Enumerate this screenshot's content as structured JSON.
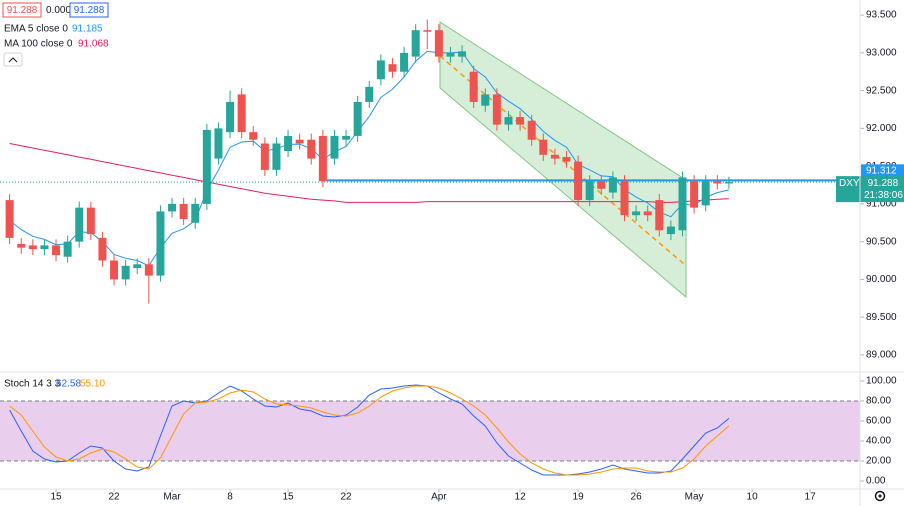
{
  "chart_data": [
    {
      "type": "candlestick",
      "symbol": "DXY",
      "time": "21:38:06",
      "header": [
        "91.288",
        "0.000",
        "91.288"
      ],
      "xlim": [
        -0.83,
        73.3
      ],
      "xticks": [
        {
          "value": 4,
          "label": "15"
        },
        {
          "value": 9,
          "label": "22"
        },
        {
          "value": 14,
          "label": "Mar"
        },
        {
          "value": 19,
          "label": "8"
        },
        {
          "value": 24,
          "label": "15"
        },
        {
          "value": 29,
          "label": "22"
        },
        {
          "value": 37,
          "label": "Apr"
        },
        {
          "value": 44,
          "label": "12"
        },
        {
          "value": 49,
          "label": "19"
        },
        {
          "value": 54,
          "label": "26"
        },
        {
          "value": 59,
          "label": "May"
        },
        {
          "value": 64,
          "label": "10"
        },
        {
          "value": 69,
          "label": "17"
        }
      ],
      "ylim": [
        88.8,
        93.7
      ],
      "yticks": [
        {
          "value": 93.5,
          "label": "93.500"
        },
        {
          "value": 93,
          "label": "93.000"
        },
        {
          "value": 92.5,
          "label": "92.500"
        },
        {
          "value": 92,
          "label": "92.000"
        },
        {
          "value": 91.5,
          "label": "91.500"
        },
        {
          "value": 91,
          "label": "91.000"
        },
        {
          "value": 90.5,
          "label": "90.500"
        },
        {
          "value": 90,
          "label": "90.000"
        },
        {
          "value": 89.5,
          "label": "89.500"
        },
        {
          "value": 89,
          "label": "89.000"
        }
      ],
      "up_color": "#26a69a",
      "down_color": "#ef5350",
      "level": 91.312,
      "last": 91.288,
      "open": [
        91.05,
        90.47,
        90.45,
        90.4,
        90.45,
        90.3,
        90.5,
        90.95,
        90.55,
        90.25,
        90.0,
        90.15,
        90.2,
        90.05,
        90.9,
        91.0,
        90.75,
        91.0,
        91.6,
        91.95,
        92.45,
        91.95,
        91.8,
        91.45,
        91.7,
        91.85,
        91.85,
        91.9,
        91.6,
        91.85,
        91.9,
        92.35,
        92.65,
        92.85,
        92.75,
        92.95,
        93.3,
        93.3,
        92.95,
        92.95,
        92.75,
        92.3,
        92.45,
        92.05,
        92.15,
        92.1,
        91.85,
        91.65,
        91.62,
        91.56,
        91.05,
        91.3,
        91.15,
        91.3,
        90.85,
        90.9,
        91.05,
        90.6,
        90.65,
        91.3,
        90.98,
        91.3,
        91.27
      ],
      "high": [
        91.13,
        90.55,
        90.53,
        90.53,
        90.53,
        90.58,
        91.03,
        91.03,
        90.63,
        90.33,
        90.26,
        90.28,
        90.28,
        90.98,
        91.08,
        91.08,
        91.08,
        92.06,
        92.08,
        92.5,
        92.53,
        92.03,
        91.88,
        91.88,
        91.98,
        91.93,
        91.93,
        91.98,
        91.98,
        91.98,
        92.43,
        92.63,
        92.98,
        92.93,
        93.08,
        93.38,
        93.44,
        93.38,
        93.08,
        93.1,
        92.83,
        92.53,
        92.53,
        92.23,
        92.23,
        92.18,
        91.93,
        91.73,
        91.7,
        91.64,
        91.38,
        91.38,
        91.43,
        91.38,
        90.98,
        90.98,
        91.13,
        90.78,
        91.43,
        91.38,
        91.38,
        91.38,
        91.36
      ],
      "low": [
        90.47,
        90.34,
        90.32,
        90.32,
        90.24,
        90.22,
        90.42,
        90.52,
        90.17,
        89.92,
        89.92,
        90.07,
        89.68,
        89.97,
        90.82,
        90.72,
        90.67,
        90.92,
        91.52,
        91.87,
        91.87,
        91.77,
        91.37,
        91.37,
        91.62,
        91.72,
        91.52,
        91.22,
        91.52,
        91.77,
        91.82,
        92.27,
        92.57,
        92.67,
        92.67,
        92.87,
        93.05,
        92.87,
        92.87,
        92.87,
        92.27,
        92.22,
        91.97,
        91.97,
        91.97,
        91.77,
        91.57,
        91.52,
        91.48,
        90.97,
        90.97,
        91.12,
        91.07,
        90.77,
        90.77,
        90.77,
        90.57,
        90.52,
        90.57,
        90.87,
        90.9,
        91.19,
        91.2
      ],
      "close": [
        90.55,
        90.42,
        90.4,
        90.45,
        90.32,
        90.5,
        90.95,
        90.6,
        90.25,
        90.0,
        90.18,
        90.2,
        90.05,
        90.9,
        91.0,
        90.8,
        91.0,
        91.98,
        92.0,
        92.35,
        91.95,
        91.85,
        91.45,
        91.8,
        91.9,
        91.8,
        91.6,
        91.3,
        91.9,
        91.9,
        92.35,
        92.55,
        92.9,
        92.75,
        93.0,
        93.3,
        93.28,
        92.95,
        93.0,
        93.02,
        92.35,
        92.45,
        92.05,
        92.15,
        92.05,
        91.85,
        91.65,
        91.6,
        91.56,
        91.05,
        91.3,
        91.2,
        91.35,
        90.85,
        90.9,
        90.85,
        90.65,
        90.7,
        91.35,
        90.95,
        91.3,
        91.27,
        91.288
      ],
      "series": [
        {
          "name": "EMA 5 close 0",
          "color": "#2196f3",
          "values": [
            90.78,
            90.66,
            90.57,
            90.53,
            90.46,
            90.47,
            90.63,
            90.62,
            90.5,
            90.33,
            90.28,
            90.25,
            90.18,
            90.42,
            90.61,
            90.67,
            90.78,
            91.18,
            91.45,
            91.75,
            91.82,
            91.83,
            91.7,
            91.73,
            91.79,
            91.79,
            91.73,
            91.59,
            91.69,
            91.76,
            91.96,
            92.16,
            92.41,
            92.52,
            92.68,
            92.89,
            93.02,
            93.0,
            93.0,
            93.01,
            92.79,
            92.68,
            92.47,
            92.36,
            92.26,
            92.12,
            91.96,
            91.84,
            91.75,
            91.52,
            91.45,
            91.37,
            91.36,
            91.19,
            91.09,
            91.01,
            90.89,
            90.83,
            91.0,
            90.98,
            91.09,
            91.15,
            91.185
          ]
        },
        {
          "name": "MA 100 close 0",
          "color": "#e91e63",
          "values": [
            91.8,
            91.77,
            91.74,
            91.71,
            91.68,
            91.65,
            91.62,
            91.59,
            91.56,
            91.53,
            91.5,
            91.47,
            91.44,
            91.41,
            91.38,
            91.35,
            91.32,
            91.29,
            91.26,
            91.23,
            91.2,
            91.17,
            91.14,
            91.12,
            91.1,
            91.08,
            91.06,
            91.05,
            91.04,
            91.02,
            91.02,
            91.02,
            91.02,
            91.02,
            91.02,
            91.02,
            91.03,
            91.03,
            91.03,
            91.03,
            91.03,
            91.03,
            91.03,
            91.03,
            91.03,
            91.03,
            91.03,
            91.03,
            91.03,
            91.03,
            91.03,
            91.03,
            91.03,
            91.03,
            91.03,
            91.03,
            91.02,
            91.02,
            91.03,
            91.04,
            91.05,
            91.06,
            91.068
          ]
        }
      ]
    },
    {
      "type": "line",
      "title": "Stoch 14 3 3",
      "ylim": [
        -7,
        106
      ],
      "yticks": [
        {
          "value": 100,
          "label": "100.00"
        },
        {
          "value": 80,
          "label": "80.00"
        },
        {
          "value": 60,
          "label": "60.00"
        },
        {
          "value": 40,
          "label": "40.00"
        },
        {
          "value": 20,
          "label": "20.00"
        },
        {
          "value": 0,
          "label": "0.00"
        }
      ],
      "band": [
        20,
        80
      ],
      "band_color": "#e1bee7",
      "series": [
        {
          "name": "%K",
          "color": "#2962ff",
          "last_label": "62.58",
          "values": [
            71,
            50,
            30,
            22,
            19,
            20,
            28,
            35,
            33,
            20,
            12,
            10,
            14,
            45,
            75,
            80,
            78,
            80,
            88,
            95,
            90,
            82,
            75,
            74,
            78,
            72,
            70,
            65,
            64,
            66,
            74,
            86,
            92,
            93,
            95,
            96,
            95,
            88,
            82,
            77,
            65,
            55,
            38,
            25,
            18,
            11,
            6,
            6,
            6,
            7,
            9,
            12,
            16,
            12,
            10,
            8,
            8,
            10,
            22,
            35,
            48,
            53,
            62.58
          ]
        },
        {
          "name": "%D",
          "color": "#ff9800",
          "last_label": "55.10",
          "values": [
            75,
            66,
            50,
            34,
            24,
            20,
            22,
            28,
            32,
            29,
            22,
            14,
            12,
            23,
            45,
            67,
            78,
            79,
            82,
            88,
            91,
            89,
            82,
            77,
            76,
            75,
            73,
            69,
            66,
            65,
            68,
            75,
            84,
            90,
            93,
            95,
            95,
            93,
            88,
            82,
            75,
            66,
            53,
            39,
            27,
            18,
            12,
            8,
            6,
            6,
            7,
            9,
            12,
            13,
            13,
            10,
            9,
            9,
            13,
            22,
            35,
            45,
            55.1
          ]
        }
      ]
    }
  ]
}
